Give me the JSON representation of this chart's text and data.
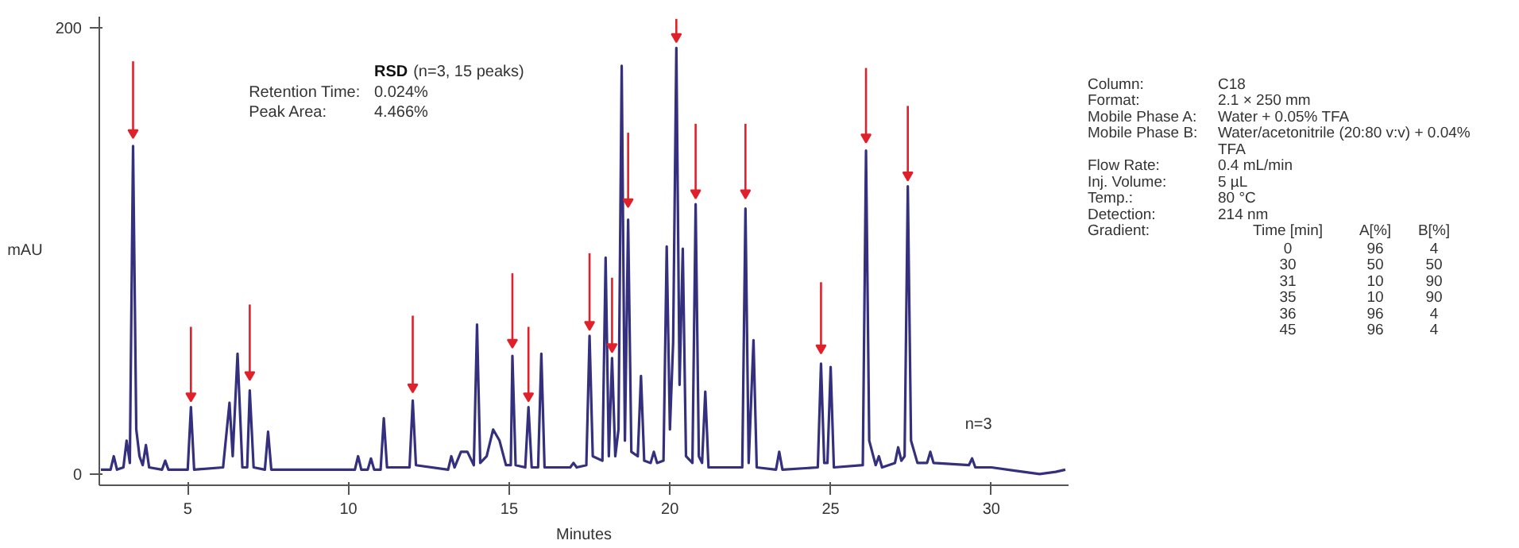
{
  "chart_data": [
    {
      "type": "line",
      "xlabel": "Minutes",
      "ylabel": "mAU",
      "xlim": [
        2.25,
        32.4
      ],
      "ylim": [
        -5,
        205
      ],
      "xticks": [
        5,
        10,
        15,
        20,
        25,
        30
      ],
      "yticks": [
        0,
        200
      ],
      "grid": false,
      "annotations": [
        "RSD (n=3, 15 peaks)",
        "Retention Time:\t0.024%",
        "Peak Area:\t4.466%",
        "n=3"
      ],
      "series": [
        {
          "color": "#35307e",
          "x": [
            2.3,
            2.6,
            2.7,
            2.8,
            3.0,
            3.1,
            3.2,
            3.3,
            3.4,
            3.5,
            3.6,
            3.7,
            3.8,
            4.2,
            4.3,
            4.4,
            5.0,
            5.1,
            5.2,
            6.1,
            6.3,
            6.4,
            6.55,
            6.7,
            6.85,
            6.93,
            7.05,
            7.4,
            7.5,
            7.6,
            10.2,
            10.3,
            10.4,
            10.6,
            10.7,
            10.8,
            11.0,
            11.1,
            11.2,
            11.9,
            12.0,
            12.1,
            13.1,
            13.2,
            13.3,
            13.5,
            13.7,
            13.9,
            14.0,
            14.1,
            14.3,
            14.5,
            14.7,
            14.9,
            15.05,
            15.1,
            15.2,
            15.5,
            15.6,
            15.7,
            15.9,
            16.0,
            16.1,
            16.9,
            17.0,
            17.1,
            17.4,
            17.5,
            17.6,
            17.9,
            18.0,
            18.1,
            18.2,
            18.3,
            18.4,
            18.5,
            18.6,
            18.7,
            18.8,
            19.0,
            19.1,
            19.2,
            19.4,
            19.5,
            19.6,
            19.8,
            19.9,
            20.0,
            20.1,
            20.2,
            20.3,
            20.4,
            20.5,
            20.7,
            20.8,
            20.9,
            21.0,
            21.1,
            21.2,
            22.25,
            22.35,
            22.45,
            22.6,
            22.7,
            23.3,
            23.4,
            23.5,
            24.6,
            24.7,
            24.8,
            24.9,
            25.0,
            25.1,
            26.0,
            26.1,
            26.2,
            26.4,
            26.5,
            26.6,
            27.0,
            27.1,
            27.2,
            27.3,
            27.4,
            27.5,
            27.7,
            28.0,
            28.1,
            28.2,
            29.3,
            29.4,
            29.5,
            30.0,
            31.0,
            31.5,
            32.0,
            32.3
          ],
          "values": [
            2,
            2,
            8,
            2,
            3,
            15,
            5,
            147,
            20,
            8,
            4,
            13,
            3,
            2,
            6,
            2,
            2,
            30,
            2,
            3,
            32,
            8,
            54,
            3,
            3,
            37.5,
            3,
            2,
            19,
            2,
            2,
            8,
            2,
            2,
            7,
            2,
            2,
            25,
            3,
            3,
            33,
            4,
            2,
            8,
            3,
            10,
            10,
            4,
            67,
            5,
            8,
            20,
            15,
            4,
            4,
            53,
            4,
            3,
            30,
            3,
            3,
            54,
            3,
            3,
            5,
            3,
            4,
            62,
            8,
            6,
            97,
            8,
            52,
            8,
            20,
            183,
            15,
            114,
            10,
            8,
            44,
            6,
            5,
            10,
            5,
            6,
            102,
            20,
            59,
            191,
            40,
            101,
            8,
            5,
            121,
            8,
            5,
            37,
            3,
            3,
            119,
            5,
            60,
            3,
            2,
            10,
            2,
            3,
            49.5,
            5,
            5,
            48,
            3,
            4,
            145,
            15,
            4,
            8,
            3,
            5,
            12,
            6,
            8,
            129,
            15,
            5,
            5,
            10,
            5,
            4,
            7,
            3,
            3,
            1,
            0,
            1,
            2
          ]
        },
        {
          "type": "scatter",
          "marker": "triangle",
          "color": "#e0202a",
          "x": [
            3.3,
            5.1,
            6.93,
            12.0,
            15.1,
            15.6,
            17.5,
            18.2,
            18.7,
            20.2,
            20.8,
            22.35,
            24.7,
            26.1,
            27.4
          ],
          "values": [
            153,
            35,
            44.5,
            39,
            59,
            35,
            67,
            57,
            122,
            196,
            126,
            126,
            56.5,
            151,
            134
          ],
          "errors": [
            [
              153,
              185
            ],
            [
              35,
              66
            ],
            [
              44.5,
              76
            ],
            [
              39,
              71
            ],
            [
              59,
              90
            ],
            [
              35,
              66
            ],
            [
              67,
              99
            ],
            [
              57,
              88
            ],
            [
              122,
              153
            ],
            [
              196,
              204
            ],
            [
              126,
              157
            ],
            [
              126,
              157
            ],
            [
              56.5,
              86
            ],
            [
              151,
              182
            ],
            [
              134,
              165
            ]
          ]
        }
      ]
    },
    {
      "type": "other",
      "annotations": [
        "Column:\tC18",
        "Format:\t2.1 × 250 mm",
        "Mobile Phase A:\tWater + 0.05% TFA",
        "Mobile Phase B:\tWater/acetonitrile (20:80 v:v) + 0.04% TFA",
        "Flow Rate:\t0.4 mL/min",
        "Inj. Volume:\t5 µL",
        "Temp.:\t80 °C",
        "Detection:\t214 nm",
        "Gradient:\tTime [min]\tA[%]\tB[%]",
        "\t0\t96\t4",
        "\t30\t50\t50",
        "\t31\t10\t90",
        "\t35\t10\t90",
        "\t36\t96\t4",
        "\t45\t96\t4"
      ]
    }
  ]
}
